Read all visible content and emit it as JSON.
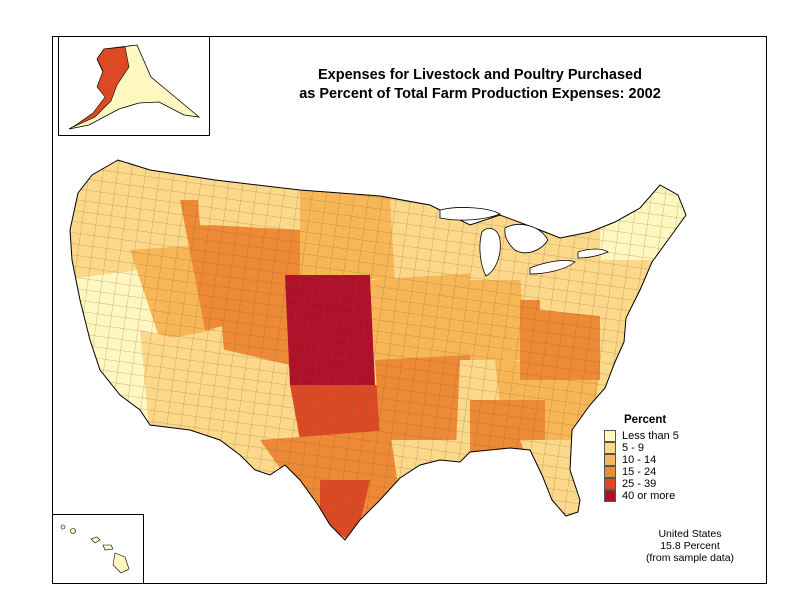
{
  "title": {
    "line1": "Expenses for Livestock and Poultry Purchased",
    "line2": "as Percent of Total Farm Production Expenses:  2002"
  },
  "legend": {
    "title": "Percent",
    "items": [
      {
        "label": "Less than 5",
        "color": "#FFF7C0"
      },
      {
        "label": "5 - 9",
        "color": "#FCD98A"
      },
      {
        "label": "10 - 14",
        "color": "#F7B757"
      },
      {
        "label": "15 - 24",
        "color": "#EE8A35"
      },
      {
        "label": "25 - 39",
        "color": "#DC4A25"
      },
      {
        "label": "40 or more",
        "color": "#B0102A"
      }
    ]
  },
  "note": {
    "line1": "United States",
    "line2": "15.8 Percent",
    "line3": "(from sample data)"
  },
  "colors": {
    "border": "#000000",
    "county_border": "#7a5a3a",
    "background": "#ffffff"
  },
  "regions": [
    {
      "name": "pacific-northwest",
      "class": 1
    },
    {
      "name": "california",
      "class": 0
    },
    {
      "name": "great-basin",
      "class": 2
    },
    {
      "name": "idaho-utah",
      "class": 3
    },
    {
      "name": "montana",
      "class": 1
    },
    {
      "name": "wyoming",
      "class": 3
    },
    {
      "name": "colorado",
      "class": 3
    },
    {
      "name": "southwest",
      "class": 1
    },
    {
      "name": "northern-plains",
      "class": 2
    },
    {
      "name": "central-plains",
      "class": 5
    },
    {
      "name": "southern-plains",
      "class": 4
    },
    {
      "name": "texas",
      "class": 3
    },
    {
      "name": "south-texas",
      "class": 4
    },
    {
      "name": "upper-midwest",
      "class": 1
    },
    {
      "name": "corn-belt",
      "class": 2
    },
    {
      "name": "missouri-arkansas",
      "class": 3
    },
    {
      "name": "delta",
      "class": 1
    },
    {
      "name": "southeast",
      "class": 2
    },
    {
      "name": "alabama-georgia",
      "class": 3
    },
    {
      "name": "florida",
      "class": 1
    },
    {
      "name": "appalachia",
      "class": 3
    },
    {
      "name": "northeast",
      "class": 1
    },
    {
      "name": "new-england",
      "class": 0
    },
    {
      "name": "great-lakes",
      "class": 1
    }
  ]
}
